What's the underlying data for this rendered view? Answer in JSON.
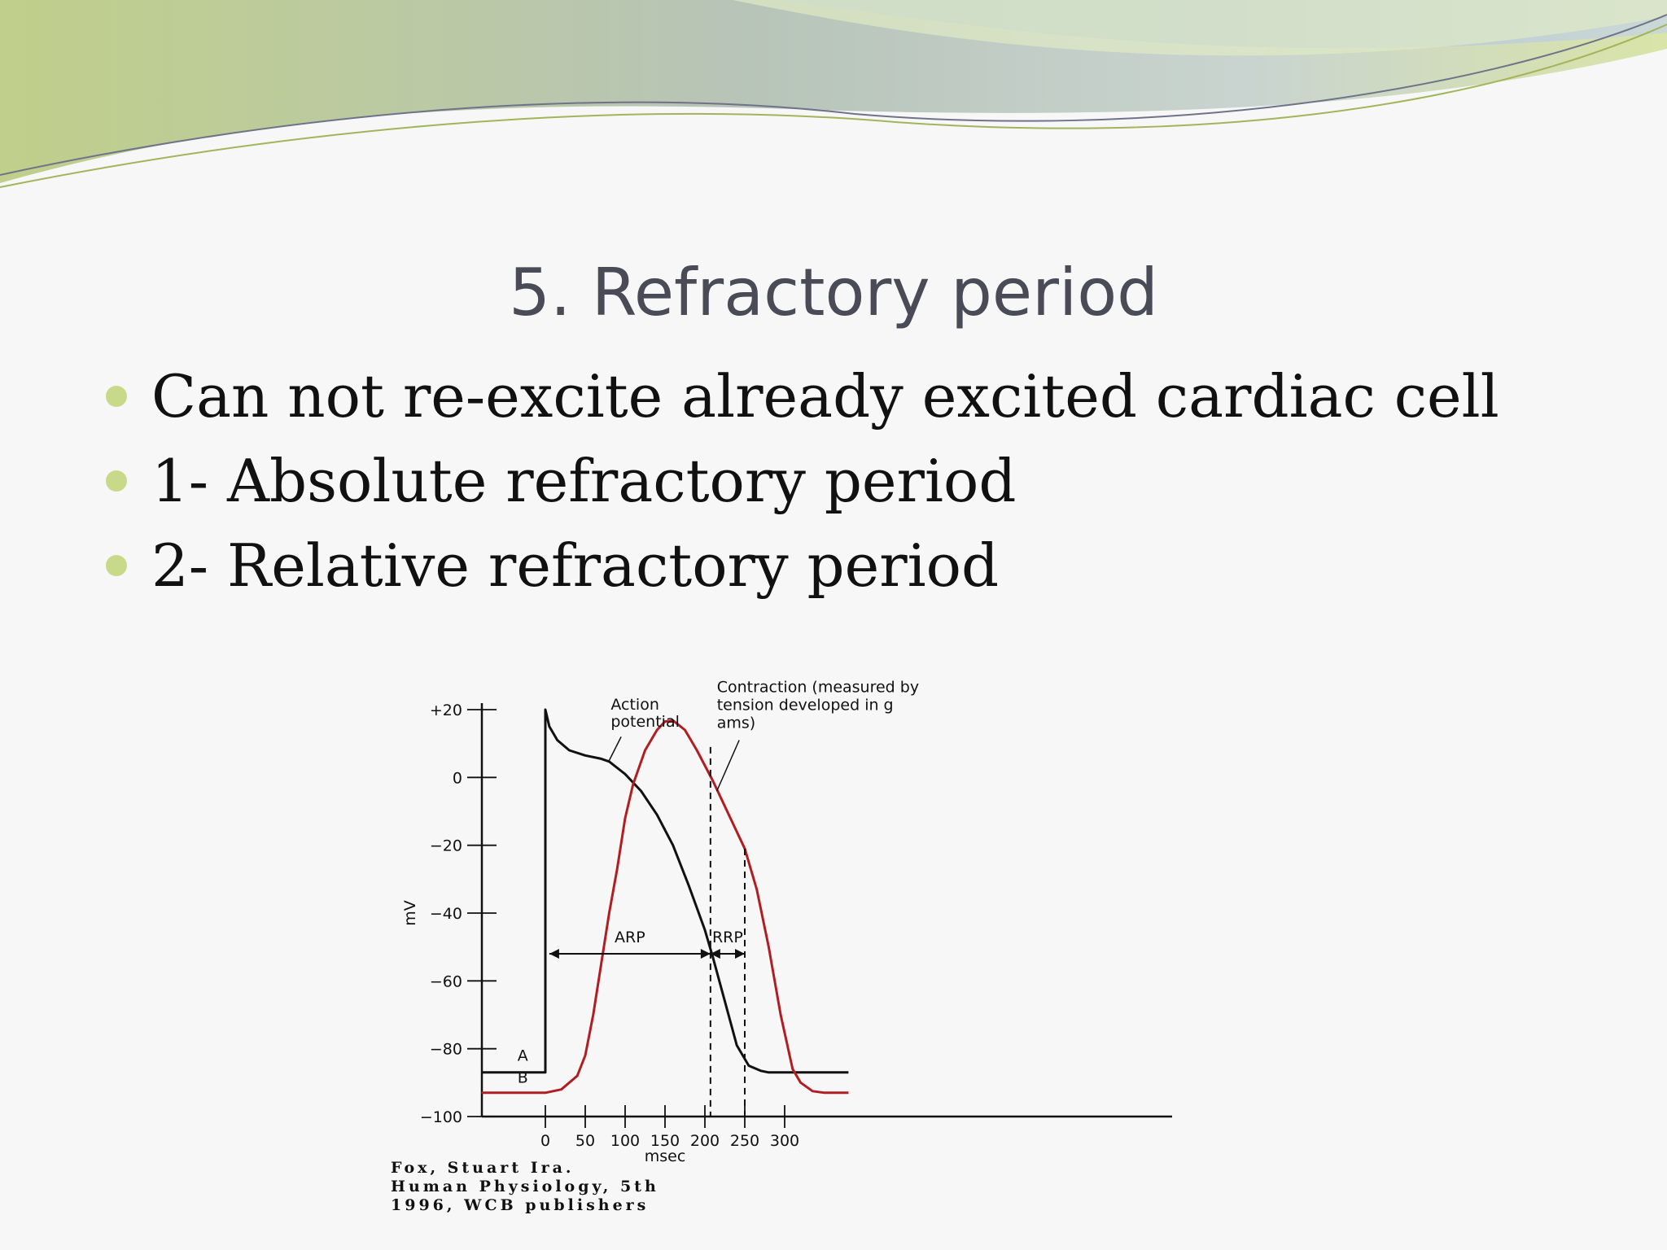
{
  "slide": {
    "title": "5. Refractory period",
    "bullets": [
      "Can not re-excite already excited cardiac cell",
      "1- Absolute refractory period",
      "2- Relative refractory period"
    ],
    "citation": [
      "Fox, Stuart Ira.",
      "Human Physiology, 5th",
      "1996, WCB publishers"
    ],
    "colors": {
      "title": "#4a4b57",
      "bullet_dot": "#c9d98a",
      "action_potential": "#111111",
      "contraction": "#b01e24"
    }
  },
  "chart_data": {
    "type": "line",
    "xlabel": "msec",
    "ylabel": "mV",
    "xlim": [
      -80,
      380
    ],
    "ylim": [
      -100,
      20
    ],
    "x_ticks": [
      0,
      50,
      100,
      150,
      200,
      250,
      300
    ],
    "y_ticks": [
      20,
      0,
      -20,
      -40,
      -60,
      -80,
      -100
    ],
    "y_tick_labels": [
      "+20",
      "0",
      "−20",
      "−40",
      "−60",
      "−80",
      "−100"
    ],
    "series": [
      {
        "name": "A",
        "annotation": "Action potential",
        "points": [
          [
            -80,
            -87
          ],
          [
            0,
            -87
          ],
          [
            0,
            20
          ],
          [
            5,
            15
          ],
          [
            15,
            11
          ],
          [
            30,
            8
          ],
          [
            50,
            6.5
          ],
          [
            70,
            5.5
          ],
          [
            80,
            4.7
          ],
          [
            100,
            1
          ],
          [
            120,
            -4
          ],
          [
            140,
            -11
          ],
          [
            160,
            -20
          ],
          [
            180,
            -32
          ],
          [
            200,
            -45
          ],
          [
            210,
            -53
          ],
          [
            225,
            -66
          ],
          [
            240,
            -79
          ],
          [
            255,
            -85
          ],
          [
            270,
            -86.5
          ],
          [
            280,
            -87
          ],
          [
            380,
            -87
          ]
        ]
      },
      {
        "name": "B",
        "annotation": "Contraction (measured by tension developed in grams)",
        "points": [
          [
            -80,
            -93
          ],
          [
            0,
            -93
          ],
          [
            20,
            -92
          ],
          [
            40,
            -88
          ],
          [
            50,
            -82
          ],
          [
            60,
            -70
          ],
          [
            70,
            -55
          ],
          [
            80,
            -40
          ],
          [
            90,
            -27
          ],
          [
            100,
            -12
          ],
          [
            110,
            -2
          ],
          [
            125,
            8
          ],
          [
            140,
            14
          ],
          [
            150,
            16.5
          ],
          [
            160,
            16.8
          ],
          [
            175,
            14
          ],
          [
            190,
            8
          ],
          [
            210,
            -1
          ],
          [
            230,
            -11
          ],
          [
            250,
            -21
          ],
          [
            265,
            -33
          ],
          [
            280,
            -50
          ],
          [
            295,
            -70
          ],
          [
            310,
            -86
          ],
          [
            320,
            -90
          ],
          [
            335,
            -92.5
          ],
          [
            350,
            -93
          ],
          [
            380,
            -93
          ]
        ]
      }
    ],
    "annotations": [
      {
        "label": "ARP",
        "from": 5,
        "to": 207,
        "y": -52
      },
      {
        "label": "RRP",
        "from": 207,
        "to": 250,
        "y": -52
      }
    ],
    "dashed_verticals": [
      207,
      250
    ]
  }
}
